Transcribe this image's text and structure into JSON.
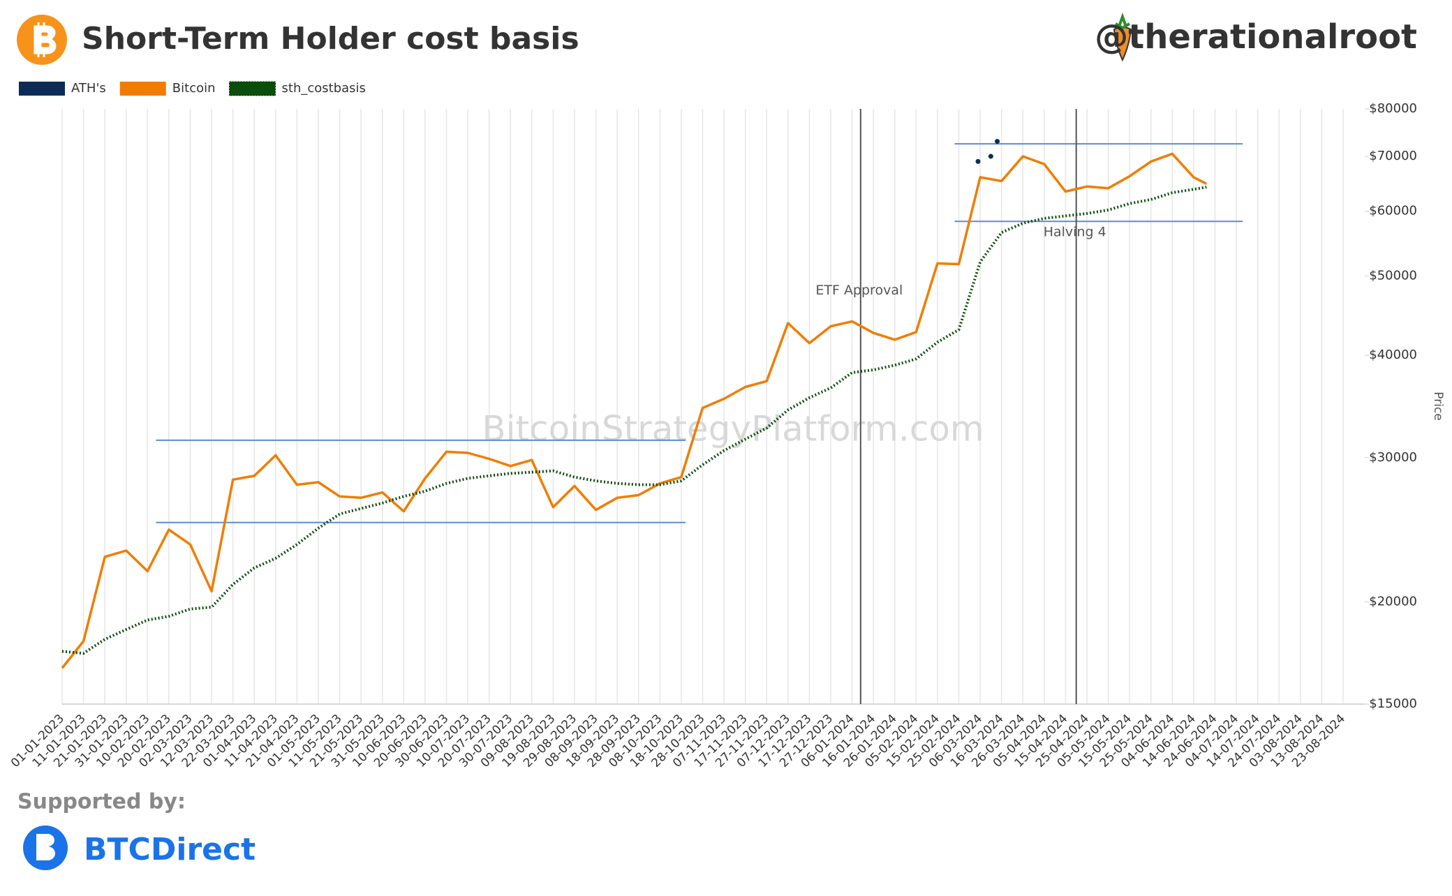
{
  "header": {
    "title": "Short-Term Holder cost basis",
    "handle": "@therationalroot"
  },
  "footer": {
    "supported": "Supported by:",
    "sponsor": "BTCDirect"
  },
  "chart_data": {
    "type": "line",
    "watermark": "BitcoinStrategyPlatform.com",
    "y_label": "Price",
    "yscale": "log",
    "grid": true,
    "x": [
      "01-01-2023",
      "11-01-2023",
      "21-01-2023",
      "31-01-2023",
      "10-02-2023",
      "20-02-2023",
      "02-03-2023",
      "12-03-2023",
      "22-03-2023",
      "01-04-2023",
      "11-04-2023",
      "21-04-2023",
      "01-05-2023",
      "11-05-2023",
      "21-05-2023",
      "31-05-2023",
      "10-06-2023",
      "20-06-2023",
      "30-06-2023",
      "10-07-2023",
      "20-07-2023",
      "30-07-2023",
      "09-08-2023",
      "19-08-2023",
      "29-08-2023",
      "08-09-2023",
      "18-09-2023",
      "28-09-2023",
      "08-10-2023",
      "18-10-2023",
      "28-10-2023",
      "07-11-2023",
      "17-11-2023",
      "27-11-2023",
      "07-12-2023",
      "17-12-2023",
      "27-12-2023",
      "06-01-2024",
      "16-01-2024",
      "26-01-2024",
      "05-02-2024",
      "15-02-2024",
      "25-02-2024",
      "06-03-2024",
      "16-03-2024",
      "26-03-2024",
      "05-04-2024",
      "15-04-2024",
      "25-04-2024",
      "05-05-2024",
      "15-05-2024",
      "25-05-2024",
      "04-06-2024",
      "14-06-2024",
      "20-06-2024"
    ],
    "series": [
      {
        "name": "ATH's",
        "color": "#0d2b55",
        "style": "dots",
        "x": [
          "05-03-2024",
          "11-03-2024",
          "14-03-2024"
        ],
        "values": [
          69000,
          70000,
          73000
        ]
      },
      {
        "name": "Bitcoin",
        "color": "#f07d00",
        "style": "solid",
        "values": [
          16600,
          17900,
          22700,
          23100,
          21800,
          24500,
          23500,
          20600,
          28200,
          28500,
          30200,
          27800,
          28000,
          26900,
          26800,
          27200,
          25800,
          28300,
          30500,
          30400,
          29900,
          29300,
          29800,
          26100,
          27700,
          25900,
          26800,
          27000,
          27900,
          28400,
          34500,
          35400,
          36600,
          37200,
          43800,
          41400,
          43400,
          44000,
          42600,
          41800,
          42700,
          51800,
          51700,
          66000,
          65300,
          70000,
          68500,
          63400,
          64300,
          64000,
          66200,
          69000,
          70500,
          66000,
          64800
        ]
      },
      {
        "name": "sth_costbasis",
        "color": "#0b4d0b",
        "style": "dotted",
        "values": [
          17400,
          17300,
          18000,
          18500,
          19000,
          19200,
          19600,
          19700,
          21000,
          22000,
          22600,
          23500,
          24600,
          25600,
          26000,
          26400,
          26900,
          27300,
          27900,
          28300,
          28500,
          28700,
          28800,
          28900,
          28400,
          28100,
          27900,
          27800,
          27800,
          28100,
          29400,
          30600,
          31600,
          32600,
          34300,
          35500,
          36500,
          38100,
          38400,
          38900,
          39600,
          41500,
          43000,
          52000,
          56500,
          58000,
          58800,
          59200,
          59600,
          60200,
          61300,
          62000,
          63200,
          63800,
          64200
        ]
      }
    ],
    "ranges": [
      {
        "x": [
          "14-02-2023",
          "20-10-2023"
        ],
        "value": 31500
      },
      {
        "x": [
          "14-02-2023",
          "20-10-2023"
        ],
        "value": 25000
      },
      {
        "x": [
          "23-02-2024",
          "07-07-2024"
        ],
        "value": 72500
      },
      {
        "x": [
          "23-02-2024",
          "07-07-2024"
        ],
        "value": 58300
      }
    ],
    "events": [
      {
        "x": "10-01-2024",
        "label": "ETF Approval",
        "value": 48000
      },
      {
        "x": "20-04-2024",
        "label": "Halving 4",
        "value": 56500
      }
    ],
    "xlim": [
      "01-01-2023",
      "23-08-2024"
    ],
    "xticks": [
      "01-01-2023",
      "11-01-2023",
      "21-01-2023",
      "31-01-2023",
      "10-02-2023",
      "20-02-2023",
      "02-03-2023",
      "12-03-2023",
      "22-03-2023",
      "01-04-2023",
      "11-04-2023",
      "21-04-2023",
      "01-05-2023",
      "11-05-2023",
      "21-05-2023",
      "31-05-2023",
      "10-06-2023",
      "20-06-2023",
      "30-06-2023",
      "10-07-2023",
      "20-07-2023",
      "30-07-2023",
      "09-08-2023",
      "19-08-2023",
      "29-08-2023",
      "08-09-2023",
      "18-09-2023",
      "28-09-2023",
      "08-10-2023",
      "18-10-2023",
      "28-10-2023",
      "07-11-2023",
      "17-11-2023",
      "27-11-2023",
      "07-12-2023",
      "17-12-2023",
      "27-12-2023",
      "06-01-2024",
      "16-01-2024",
      "26-01-2024",
      "05-02-2024",
      "15-02-2024",
      "25-02-2024",
      "06-03-2024",
      "16-03-2024",
      "26-03-2024",
      "05-04-2024",
      "15-04-2024",
      "25-04-2024",
      "05-05-2024",
      "15-05-2024",
      "25-05-2024",
      "04-06-2024",
      "14-06-2024",
      "24-06-2024",
      "04-07-2024",
      "14-07-2024",
      "24-07-2024",
      "03-08-2024",
      "13-08-2024",
      "23-08-2024"
    ],
    "ylim": [
      15000,
      80000
    ],
    "yticks": [
      {
        "value": 15000,
        "label": "$15000"
      },
      {
        "value": 20000,
        "label": "$20000"
      },
      {
        "value": 30000,
        "label": "$30000"
      },
      {
        "value": 40000,
        "label": "$40000"
      },
      {
        "value": 50000,
        "label": "$50000"
      },
      {
        "value": 60000,
        "label": "$60000"
      },
      {
        "value": 70000,
        "label": "$70000"
      },
      {
        "value": 80000,
        "label": "$80000"
      }
    ]
  }
}
